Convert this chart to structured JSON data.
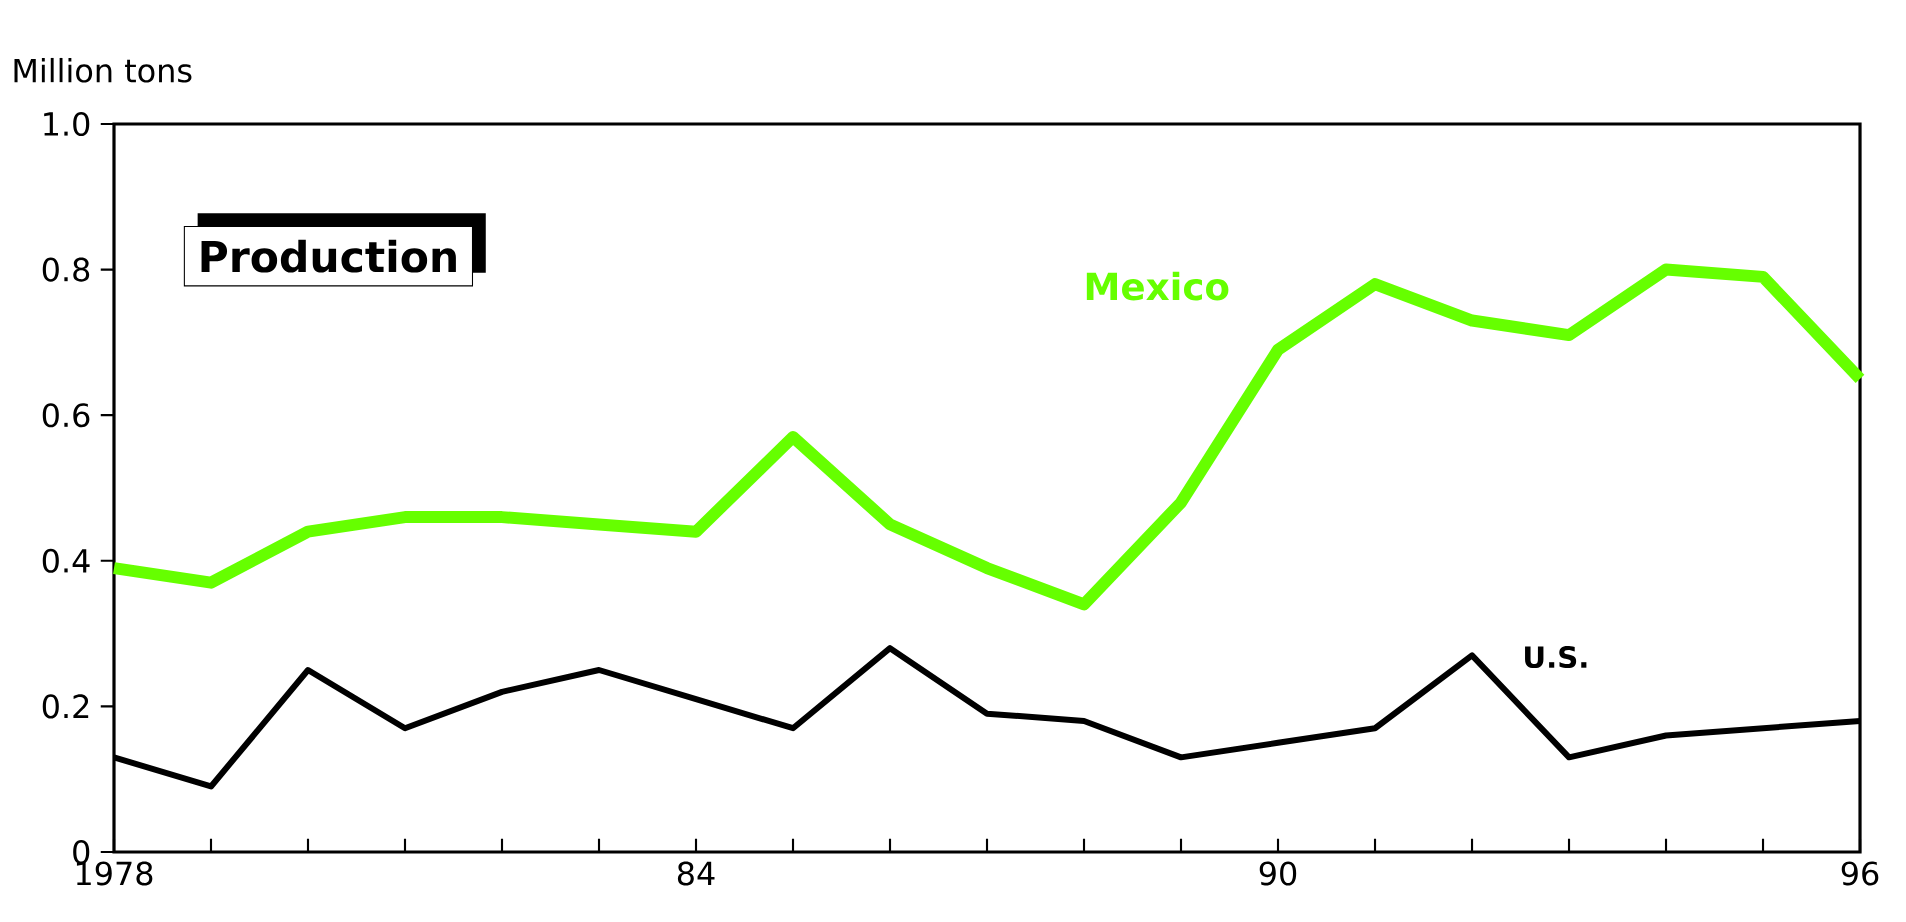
{
  "chart_data": {
    "type": "line",
    "title": "Production",
    "ylabel": "Million tons",
    "x": [
      1978,
      1979,
      1980,
      1981,
      1982,
      1983,
      1984,
      1985,
      1986,
      1987,
      1988,
      1989,
      1990,
      1991,
      1992,
      1993,
      1994,
      1995,
      1996
    ],
    "xlim": [
      1978,
      1996
    ],
    "ylim": [
      0,
      1.0
    ],
    "xticks": [
      {
        "value": 1978,
        "label": "1978"
      },
      {
        "value": 1979,
        "label": null
      },
      {
        "value": 1980,
        "label": null
      },
      {
        "value": 1981,
        "label": null
      },
      {
        "value": 1982,
        "label": null
      },
      {
        "value": 1983,
        "label": null
      },
      {
        "value": 1984,
        "label": "84"
      },
      {
        "value": 1985,
        "label": null
      },
      {
        "value": 1986,
        "label": null
      },
      {
        "value": 1987,
        "label": null
      },
      {
        "value": 1988,
        "label": null
      },
      {
        "value": 1989,
        "label": null
      },
      {
        "value": 1990,
        "label": "90"
      },
      {
        "value": 1991,
        "label": null
      },
      {
        "value": 1992,
        "label": null
      },
      {
        "value": 1993,
        "label": null
      },
      {
        "value": 1994,
        "label": null
      },
      {
        "value": 1995,
        "label": null
      },
      {
        "value": 1996,
        "label": "96"
      }
    ],
    "yticks": [
      0,
      0.2,
      0.4,
      0.6,
      0.8,
      {
        "value": 1.0,
        "label": "1.0"
      }
    ],
    "series": [
      {
        "name": "Mexico",
        "color": "#66ff00",
        "values": [
          0.39,
          0.37,
          0.44,
          0.46,
          0.46,
          0.45,
          0.44,
          0.57,
          0.45,
          0.39,
          0.34,
          0.48,
          0.69,
          0.78,
          0.73,
          0.71,
          0.8,
          0.79,
          0.65
        ]
      },
      {
        "name": "U.S.",
        "color": "#000000",
        "values": [
          0.13,
          0.09,
          0.25,
          0.17,
          0.22,
          0.25,
          0.21,
          0.17,
          0.28,
          0.19,
          0.18,
          0.13,
          0.15,
          0.17,
          0.27,
          0.13,
          0.16,
          0.17,
          0.18
        ]
      }
    ],
    "legend": false,
    "grid": false
  }
}
